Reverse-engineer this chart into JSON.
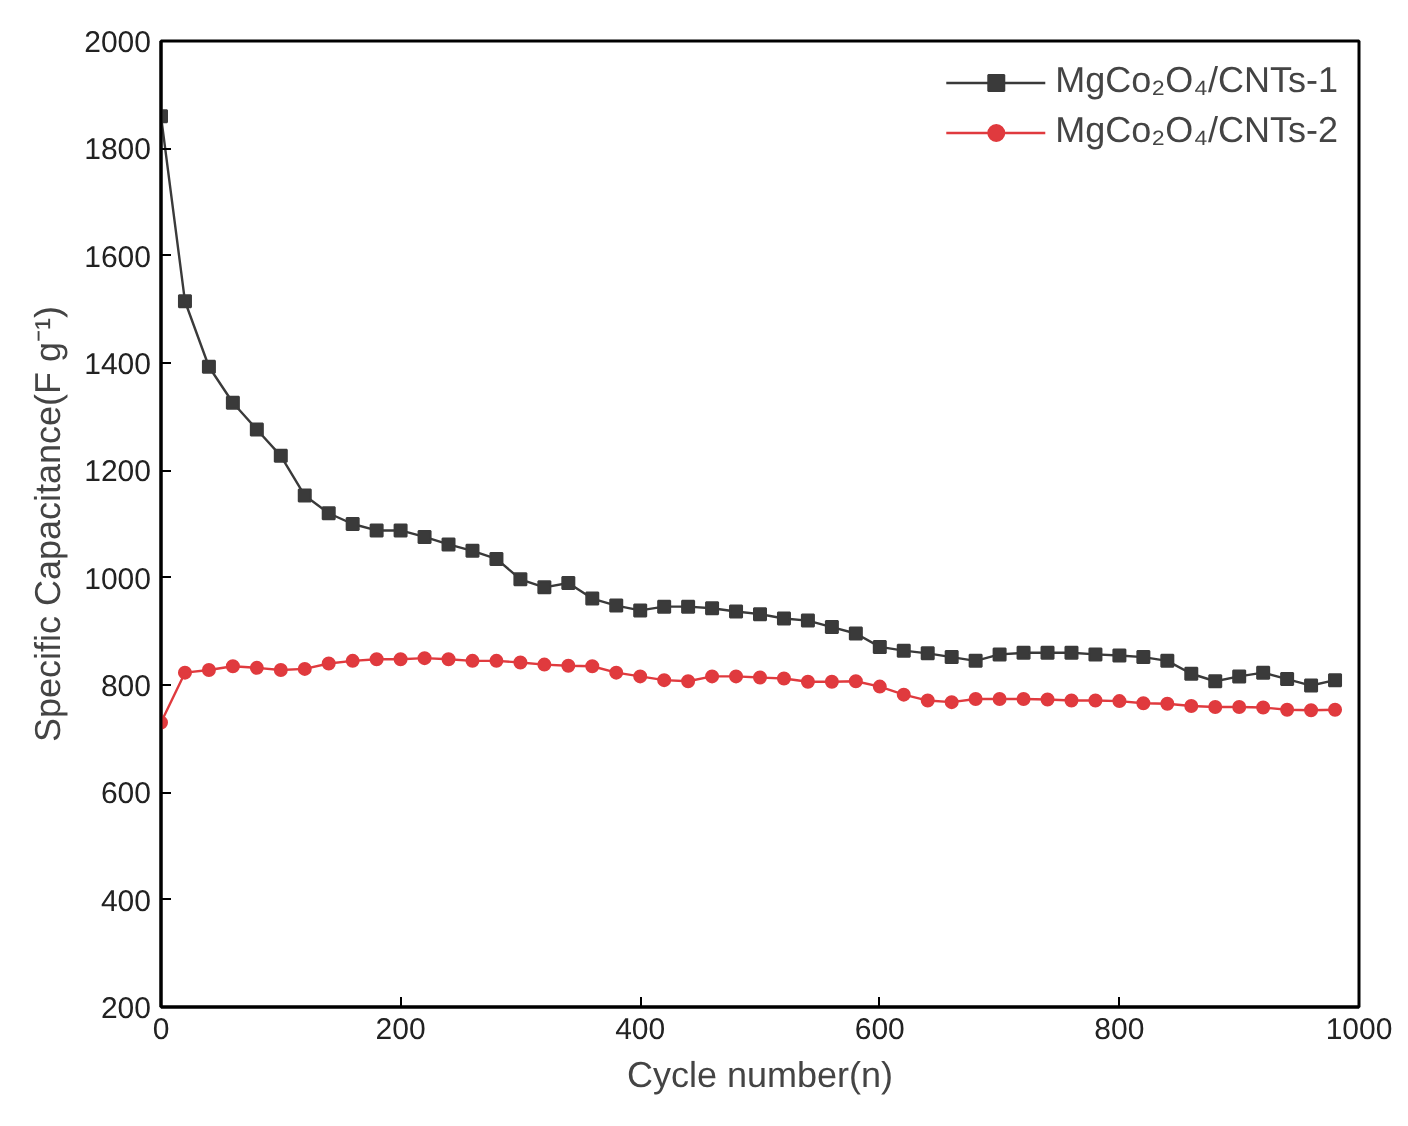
{
  "chart_data": {
    "type": "line",
    "xlabel": "Cycle number(n)",
    "ylabel": "Specific Capacitance(F g⁻¹)",
    "x": [
      0,
      20,
      40,
      60,
      80,
      100,
      120,
      140,
      160,
      180,
      200,
      220,
      240,
      260,
      280,
      300,
      320,
      340,
      360,
      380,
      400,
      420,
      440,
      460,
      480,
      500,
      520,
      540,
      560,
      580,
      600,
      620,
      640,
      660,
      680,
      700,
      720,
      740,
      760,
      780,
      800,
      820,
      840,
      860,
      880,
      900,
      920,
      940,
      960,
      980
    ],
    "series": [
      {
        "name": "MgCo₂O₄/CNTs-1",
        "color": "#3a3a3a",
        "marker": "square",
        "values": [
          1860,
          1515,
          1393,
          1326,
          1276,
          1227,
          1153,
          1120,
          1100,
          1088,
          1088,
          1076,
          1062,
          1050,
          1035,
          997,
          982,
          990,
          961,
          948,
          939,
          946,
          946,
          943,
          937,
          932,
          924,
          920,
          908,
          896,
          871,
          864,
          859,
          852,
          845,
          857,
          860,
          860,
          860,
          857,
          855,
          852,
          845,
          821,
          807,
          816,
          823,
          811,
          799,
          809
        ]
      },
      {
        "name": "MgCo₂O₄/CNTs-2",
        "color": "#e03a3e",
        "marker": "circle",
        "values": [
          730,
          823,
          828,
          835,
          832,
          828,
          830,
          840,
          845,
          848,
          848,
          850,
          848,
          845,
          845,
          842,
          838,
          836,
          835,
          823,
          816,
          809,
          807,
          816,
          816,
          814,
          812,
          806,
          806,
          807,
          797,
          782,
          771,
          768,
          774,
          774,
          774,
          773,
          771,
          771,
          770,
          766,
          765,
          761,
          759,
          759,
          758,
          754,
          753,
          754
        ]
      }
    ],
    "xlim": [
      0,
      1000
    ],
    "ylim": [
      200,
      2000
    ],
    "xticks": [
      0,
      200,
      400,
      600,
      800,
      1000
    ],
    "yticks": [
      200,
      400,
      600,
      800,
      1000,
      1200,
      1400,
      1600,
      1800,
      2000
    ],
    "grid": false,
    "legend": "top right",
    "line_style": "solid"
  }
}
